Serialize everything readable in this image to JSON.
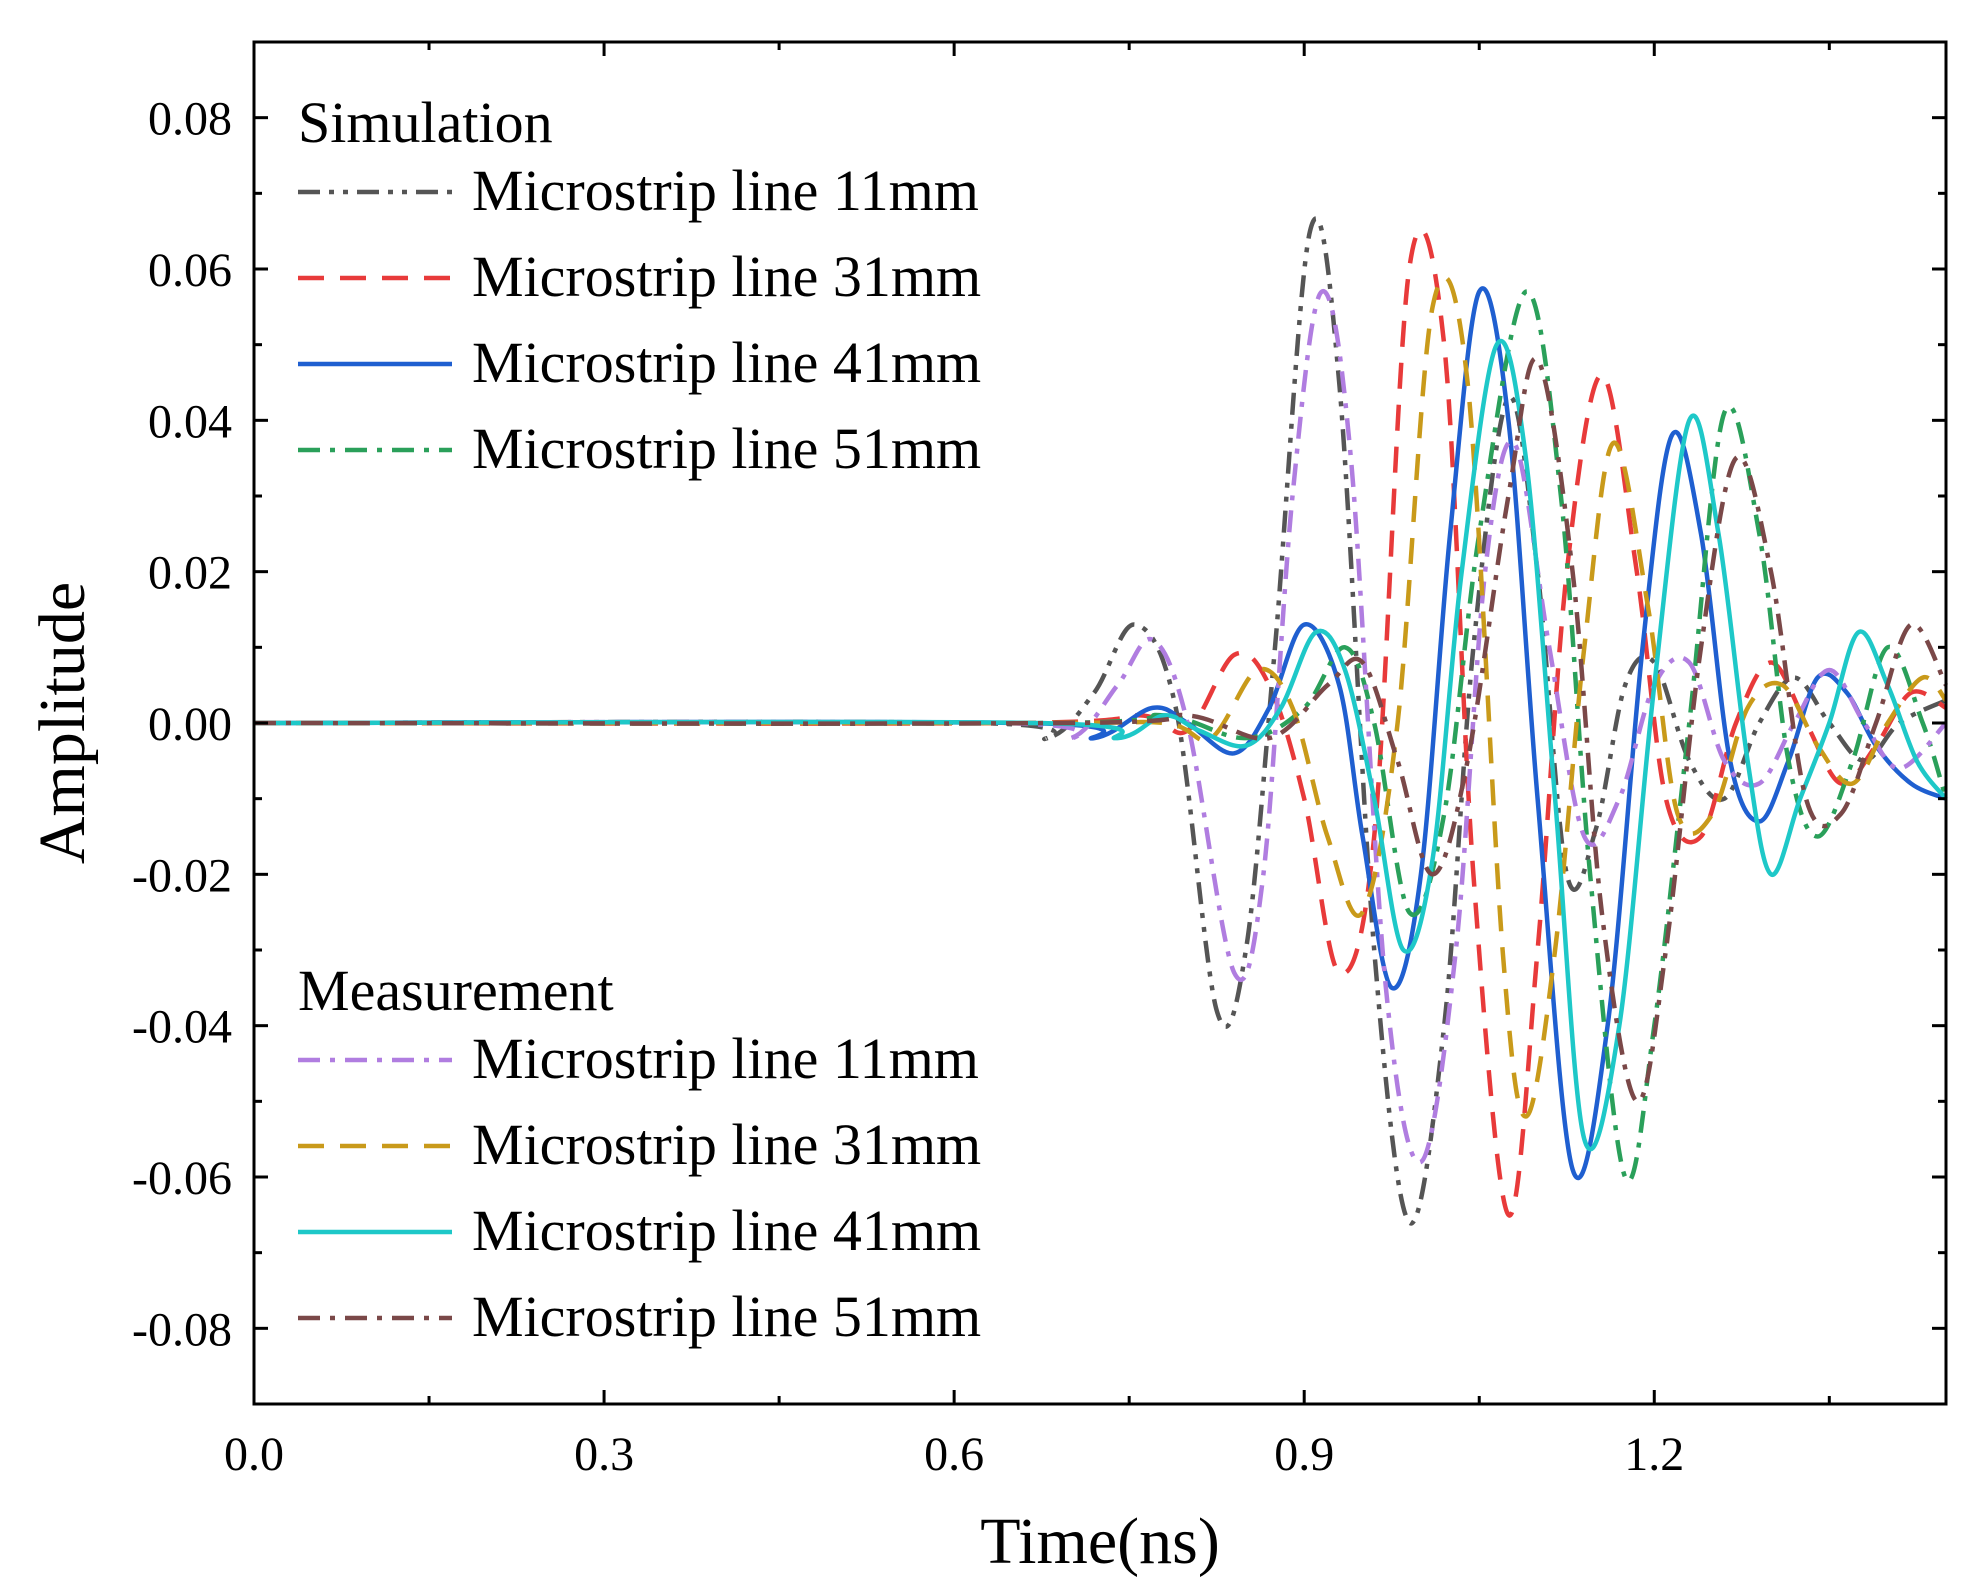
{
  "chart_data": {
    "type": "line",
    "title": "",
    "xlabel": "Time(ns)",
    "ylabel": "Amplitude",
    "xlim": [
      0.0,
      1.45
    ],
    "ylim": [
      -0.09,
      0.09
    ],
    "x_ticks": [
      0.0,
      0.3,
      0.6,
      0.9,
      1.2
    ],
    "x_tick_labels": [
      "0.0",
      "0.3",
      "0.6",
      "0.9",
      "1.2"
    ],
    "y_ticks": [
      0.08,
      0.06,
      0.04,
      0.02,
      0.0,
      -0.02,
      -0.04,
      -0.06,
      -0.08
    ],
    "y_tick_labels": [
      "0.08",
      "0.06",
      "0.04",
      "0.02",
      "0.00",
      "-0.02",
      "-0.04",
      "-0.06",
      "-0.08"
    ],
    "legend_groups": [
      {
        "title": "Simulation",
        "placement": "upper-left"
      },
      {
        "title": "Measurement",
        "placement": "lower-left"
      }
    ],
    "series": [
      {
        "name": "Microstrip line 11mm",
        "group": "Simulation",
        "color": "#555555",
        "dash": "dash-dot-dot",
        "points": [
          [
            0.0,
            0.0
          ],
          [
            0.62,
            0.0
          ],
          [
            0.68,
            -0.002
          ],
          [
            0.72,
            0.004
          ],
          [
            0.755,
            0.013
          ],
          [
            0.79,
            0.002
          ],
          [
            0.825,
            -0.038
          ],
          [
            0.85,
            -0.03
          ],
          [
            0.875,
            0.01
          ],
          [
            0.905,
            0.065
          ],
          [
            0.93,
            0.045
          ],
          [
            0.96,
            -0.03
          ],
          [
            0.99,
            -0.066
          ],
          [
            1.02,
            -0.04
          ],
          [
            1.045,
            0.01
          ],
          [
            1.075,
            0.043
          ],
          [
            1.1,
            0.02
          ],
          [
            1.125,
            -0.02
          ],
          [
            1.15,
            -0.014
          ],
          [
            1.175,
            0.005
          ],
          [
            1.2,
            0.008
          ],
          [
            1.23,
            -0.005
          ],
          [
            1.26,
            -0.01
          ],
          [
            1.29,
            0.0
          ],
          [
            1.32,
            0.006
          ],
          [
            1.35,
            0.0
          ],
          [
            1.38,
            -0.005
          ],
          [
            1.41,
            0.0
          ],
          [
            1.45,
            0.003
          ]
        ]
      },
      {
        "name": "Microstrip line 31mm",
        "group": "Simulation",
        "color": "#e83a3a",
        "dash": "dash",
        "points": [
          [
            0.0,
            0.0
          ],
          [
            0.65,
            0.0
          ],
          [
            0.76,
            0.001
          ],
          [
            0.8,
            -0.001
          ],
          [
            0.84,
            0.009
          ],
          [
            0.87,
            0.005
          ],
          [
            0.9,
            -0.01
          ],
          [
            0.93,
            -0.033
          ],
          [
            0.96,
            -0.015
          ],
          [
            0.99,
            0.06
          ],
          [
            1.02,
            0.05
          ],
          [
            1.045,
            -0.02
          ],
          [
            1.075,
            -0.065
          ],
          [
            1.1,
            -0.03
          ],
          [
            1.125,
            0.02
          ],
          [
            1.155,
            0.046
          ],
          [
            1.185,
            0.02
          ],
          [
            1.21,
            -0.01
          ],
          [
            1.24,
            -0.015
          ],
          [
            1.27,
            0.0
          ],
          [
            1.3,
            0.008
          ],
          [
            1.33,
            0.0
          ],
          [
            1.36,
            -0.008
          ],
          [
            1.39,
            -0.003
          ],
          [
            1.42,
            0.004
          ],
          [
            1.45,
            0.002
          ]
        ]
      },
      {
        "name": "Microstrip line 41mm",
        "group": "Simulation",
        "color": "#1f5fd0",
        "dash": "solid",
        "points": [
          [
            0.0,
            0.0
          ],
          [
            0.66,
            0.0
          ],
          [
            0.72,
            -0.002
          ],
          [
            0.77,
            0.002
          ],
          [
            0.8,
            0.0
          ],
          [
            0.84,
            -0.004
          ],
          [
            0.87,
            0.002
          ],
          [
            0.9,
            0.013
          ],
          [
            0.93,
            0.005
          ],
          [
            0.95,
            -0.015
          ],
          [
            0.975,
            -0.035
          ],
          [
            1.0,
            -0.02
          ],
          [
            1.025,
            0.025
          ],
          [
            1.05,
            0.057
          ],
          [
            1.075,
            0.04
          ],
          [
            1.1,
            -0.01
          ],
          [
            1.13,
            -0.059
          ],
          [
            1.16,
            -0.04
          ],
          [
            1.19,
            0.01
          ],
          [
            1.215,
            0.038
          ],
          [
            1.24,
            0.025
          ],
          [
            1.265,
            -0.005
          ],
          [
            1.29,
            -0.013
          ],
          [
            1.315,
            -0.005
          ],
          [
            1.34,
            0.006
          ],
          [
            1.365,
            0.004
          ],
          [
            1.39,
            -0.003
          ],
          [
            1.42,
            -0.008
          ],
          [
            1.45,
            -0.01
          ]
        ]
      },
      {
        "name": "Microstrip line 51mm",
        "group": "Simulation",
        "color": "#2aa05a",
        "dash": "dash-dot",
        "points": [
          [
            0.0,
            0.0
          ],
          [
            0.68,
            0.0
          ],
          [
            0.78,
            0.001
          ],
          [
            0.85,
            -0.002
          ],
          [
            0.9,
            0.002
          ],
          [
            0.935,
            0.01
          ],
          [
            0.96,
            0.0
          ],
          [
            0.99,
            -0.025
          ],
          [
            1.02,
            -0.012
          ],
          [
            1.05,
            0.025
          ],
          [
            1.09,
            0.057
          ],
          [
            1.12,
            0.03
          ],
          [
            1.145,
            -0.02
          ],
          [
            1.175,
            -0.06
          ],
          [
            1.2,
            -0.04
          ],
          [
            1.23,
            0.0
          ],
          [
            1.26,
            0.041
          ],
          [
            1.29,
            0.025
          ],
          [
            1.315,
            -0.005
          ],
          [
            1.34,
            -0.015
          ],
          [
            1.37,
            -0.005
          ],
          [
            1.4,
            0.01
          ],
          [
            1.43,
            0.0
          ],
          [
            1.45,
            -0.01
          ]
        ]
      },
      {
        "name": "Microstrip line 11mm",
        "group": "Measurement",
        "color": "#b07de0",
        "dash": "dash-dot",
        "points": [
          [
            0.0,
            0.0
          ],
          [
            0.64,
            0.0
          ],
          [
            0.7,
            -0.002
          ],
          [
            0.74,
            0.005
          ],
          [
            0.77,
            0.011
          ],
          [
            0.8,
            0.0
          ],
          [
            0.84,
            -0.033
          ],
          [
            0.865,
            -0.02
          ],
          [
            0.89,
            0.03
          ],
          [
            0.915,
            0.057
          ],
          [
            0.94,
            0.035
          ],
          [
            0.97,
            -0.035
          ],
          [
            1.0,
            -0.058
          ],
          [
            1.03,
            -0.03
          ],
          [
            1.055,
            0.02
          ],
          [
            1.08,
            0.037
          ],
          [
            1.11,
            0.01
          ],
          [
            1.14,
            -0.015
          ],
          [
            1.17,
            -0.01
          ],
          [
            1.2,
            0.005
          ],
          [
            1.23,
            0.008
          ],
          [
            1.26,
            -0.005
          ],
          [
            1.29,
            -0.008
          ],
          [
            1.32,
            0.0
          ],
          [
            1.35,
            0.007
          ],
          [
            1.38,
            0.0
          ],
          [
            1.41,
            -0.006
          ],
          [
            1.45,
            0.0
          ]
        ]
      },
      {
        "name": "Microstrip line 31mm",
        "group": "Measurement",
        "color": "#c99a1a",
        "dash": "dash",
        "points": [
          [
            0.0,
            0.0
          ],
          [
            0.66,
            0.0
          ],
          [
            0.78,
            0.0
          ],
          [
            0.82,
            -0.002
          ],
          [
            0.86,
            0.007
          ],
          [
            0.89,
            0.002
          ],
          [
            0.92,
            -0.015
          ],
          [
            0.95,
            -0.025
          ],
          [
            0.98,
            0.0
          ],
          [
            1.01,
            0.055
          ],
          [
            1.04,
            0.045
          ],
          [
            1.07,
            -0.03
          ],
          [
            1.09,
            -0.052
          ],
          [
            1.115,
            -0.03
          ],
          [
            1.14,
            0.01
          ],
          [
            1.165,
            0.037
          ],
          [
            1.195,
            0.015
          ],
          [
            1.22,
            -0.012
          ],
          [
            1.25,
            -0.012
          ],
          [
            1.28,
            0.002
          ],
          [
            1.31,
            0.005
          ],
          [
            1.34,
            -0.003
          ],
          [
            1.37,
            -0.008
          ],
          [
            1.4,
            0.0
          ],
          [
            1.43,
            0.006
          ],
          [
            1.45,
            0.003
          ]
        ]
      },
      {
        "name": "Microstrip line 41mm",
        "group": "Measurement",
        "color": "#1ec8c8",
        "dash": "solid",
        "points": [
          [
            0.0,
            0.0
          ],
          [
            0.67,
            0.0
          ],
          [
            0.74,
            -0.002
          ],
          [
            0.78,
            0.001
          ],
          [
            0.81,
            -0.001
          ],
          [
            0.85,
            -0.003
          ],
          [
            0.88,
            0.002
          ],
          [
            0.91,
            0.012
          ],
          [
            0.935,
            0.007
          ],
          [
            0.96,
            -0.01
          ],
          [
            0.985,
            -0.03
          ],
          [
            1.01,
            -0.018
          ],
          [
            1.035,
            0.02
          ],
          [
            1.065,
            0.05
          ],
          [
            1.09,
            0.035
          ],
          [
            1.115,
            -0.01
          ],
          [
            1.14,
            -0.055
          ],
          [
            1.17,
            -0.04
          ],
          [
            1.2,
            0.005
          ],
          [
            1.23,
            0.04
          ],
          [
            1.255,
            0.025
          ],
          [
            1.28,
            -0.005
          ],
          [
            1.3,
            -0.02
          ],
          [
            1.325,
            -0.01
          ],
          [
            1.35,
            0.0
          ],
          [
            1.375,
            0.012
          ],
          [
            1.4,
            0.005
          ],
          [
            1.425,
            -0.005
          ],
          [
            1.45,
            -0.01
          ]
        ]
      },
      {
        "name": "Microstrip line 51mm",
        "group": "Measurement",
        "color": "#7a4848",
        "dash": "dash-dot",
        "points": [
          [
            0.0,
            0.0
          ],
          [
            0.7,
            0.0
          ],
          [
            0.8,
            0.001
          ],
          [
            0.87,
            -0.002
          ],
          [
            0.92,
            0.005
          ],
          [
            0.95,
            0.008
          ],
          [
            0.98,
            -0.005
          ],
          [
            1.01,
            -0.02
          ],
          [
            1.04,
            -0.005
          ],
          [
            1.075,
            0.03
          ],
          [
            1.1,
            0.048
          ],
          [
            1.13,
            0.02
          ],
          [
            1.155,
            -0.025
          ],
          [
            1.185,
            -0.05
          ],
          [
            1.21,
            -0.03
          ],
          [
            1.24,
            0.01
          ],
          [
            1.27,
            0.035
          ],
          [
            1.3,
            0.02
          ],
          [
            1.33,
            -0.01
          ],
          [
            1.36,
            -0.012
          ],
          [
            1.39,
            0.0
          ],
          [
            1.42,
            0.013
          ],
          [
            1.45,
            0.005
          ]
        ]
      }
    ]
  }
}
